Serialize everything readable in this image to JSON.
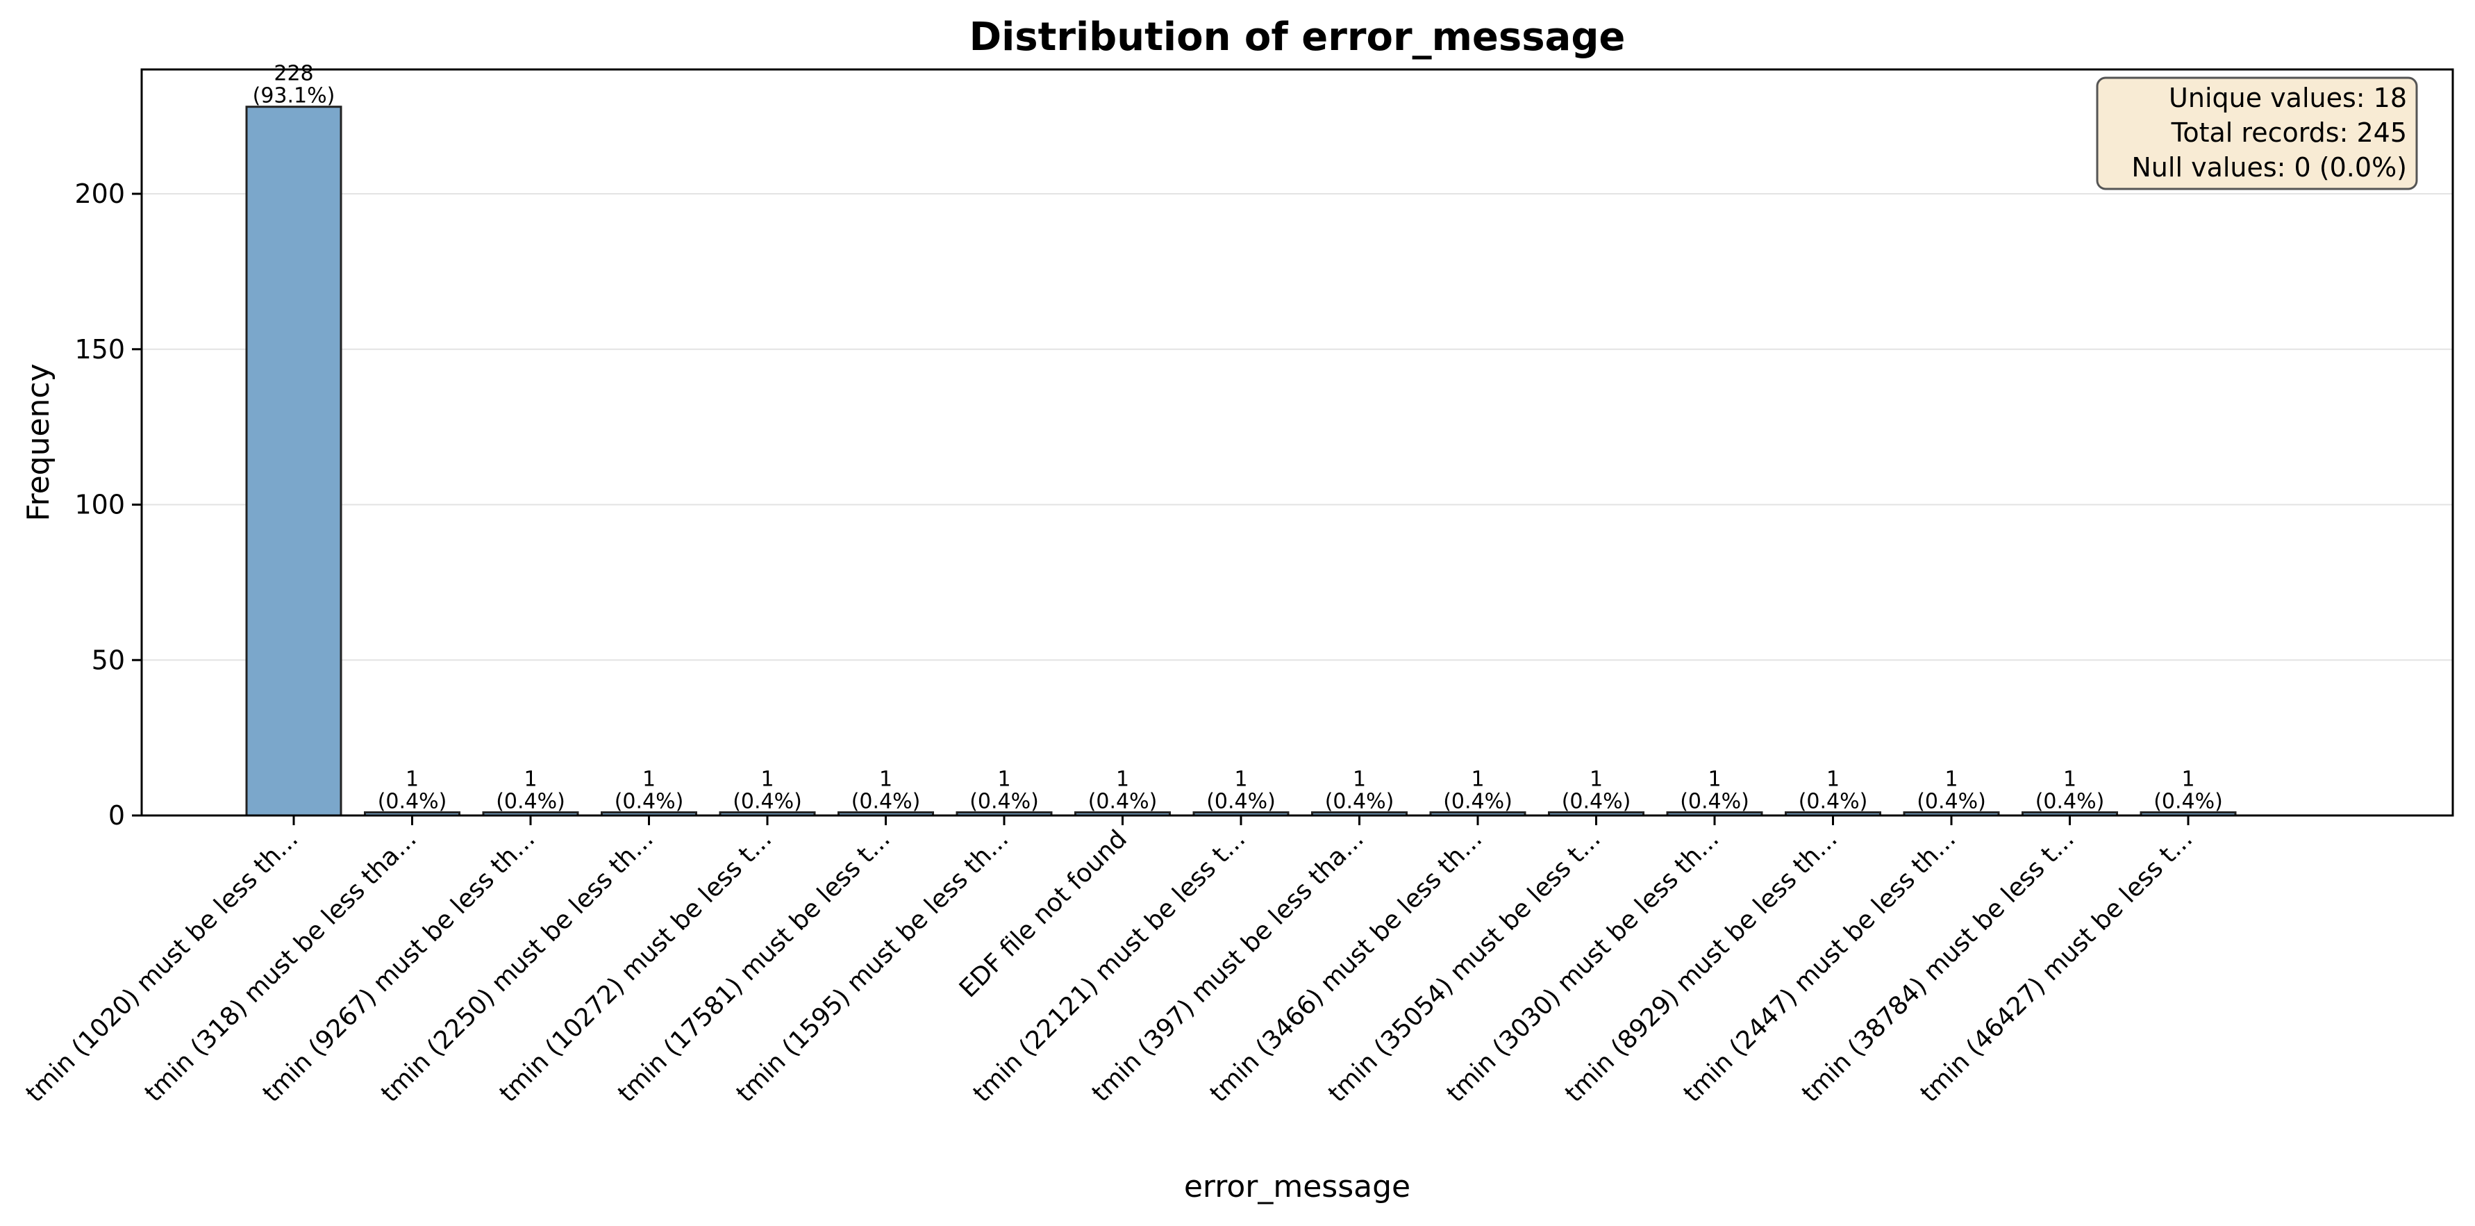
{
  "chart_data": {
    "type": "bar",
    "title": "Distribution of error_message",
    "xlabel": "error_message",
    "ylabel": "Frequency",
    "ylim": [
      0,
      240
    ],
    "yticks": [
      0,
      50,
      100,
      150,
      200
    ],
    "grid": "y",
    "bar_color": "#7ba7cb",
    "bar_edge_color": "#222222",
    "categories": [
      "tmin (1020) must be less th...",
      "tmin (318) must be less tha...",
      "tmin (9267) must be less th...",
      "tmin (2250) must be less th...",
      "tmin (10272) must be less t...",
      "tmin (17581) must be less t...",
      "tmin (1595) must be less th...",
      "EDF file not found",
      "tmin (22121) must be less t...",
      "tmin (397) must be less tha...",
      "tmin (3466) must be less th...",
      "tmin (35054) must be less t...",
      "tmin (3030) must be less th...",
      "tmin (8929) must be less th...",
      "tmin (2447) must be less th...",
      "tmin (38784) must be less t...",
      "tmin (46427) must be less t..."
    ],
    "values": [
      228,
      1,
      1,
      1,
      1,
      1,
      1,
      1,
      1,
      1,
      1,
      1,
      1,
      1,
      1,
      1,
      1
    ],
    "percent_labels": [
      "(93.1%)",
      "(0.4%)",
      "(0.4%)",
      "(0.4%)",
      "(0.4%)",
      "(0.4%)",
      "(0.4%)",
      "(0.4%)",
      "(0.4%)",
      "(0.4%)",
      "(0.4%)",
      "(0.4%)",
      "(0.4%)",
      "(0.4%)",
      "(0.4%)",
      "(0.4%)",
      "(0.4%)"
    ],
    "stats_box": {
      "placement": "top-right",
      "background": "#f8ebd4",
      "lines": [
        "Unique values: 18",
        "Total records: 245",
        "Null values: 0 (0.0%)"
      ]
    }
  }
}
